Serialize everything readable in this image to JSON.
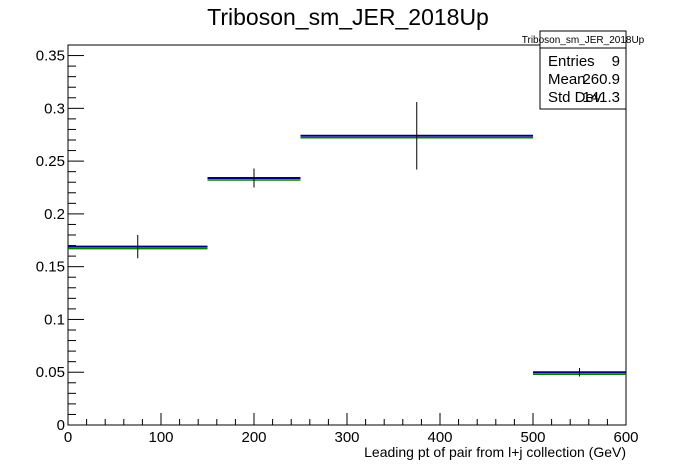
{
  "chart_data": {
    "type": "histogram",
    "title": "Triboson_sm_JER_2018Up",
    "xlabel": "Leading pt of pair from l+j collection (GeV)",
    "ylabel": "",
    "xlim": [
      0,
      600
    ],
    "ylim": [
      0,
      0.36
    ],
    "x_ticks": [
      0,
      100,
      200,
      300,
      400,
      500,
      600
    ],
    "y_ticks": [
      0,
      0.05,
      0.1,
      0.15,
      0.2,
      0.25,
      0.3,
      0.35
    ],
    "x_tick_labels": [
      "0",
      "100",
      "200",
      "300",
      "400",
      "500",
      "600"
    ],
    "y_tick_labels": [
      "0",
      "0.05",
      "0.1",
      "0.15",
      "0.2",
      "0.25",
      "0.3",
      "0.35"
    ],
    "bins": [
      {
        "x_low": 0,
        "x_high": 150,
        "x_center": 75,
        "value": 0.169,
        "error": 0.011
      },
      {
        "x_low": 150,
        "x_high": 250,
        "x_center": 200,
        "value": 0.234,
        "error": 0.009
      },
      {
        "x_low": 250,
        "x_high": 500,
        "x_center": 375,
        "value": 0.274,
        "error": 0.032
      },
      {
        "x_low": 500,
        "x_high": 600,
        "x_center": 550,
        "value": 0.05,
        "error": 0.004
      }
    ],
    "series_colors": {
      "main": "#00007f",
      "shadow": "#007f00",
      "error_bars": "#000000"
    },
    "grid": false,
    "stats_box": {
      "title": "Triboson_sm_JER_2018Up",
      "rows": [
        {
          "label": "Entries",
          "value": "9"
        },
        {
          "label": "Mean",
          "value": "260.9"
        },
        {
          "label": "Std Dev",
          "value": "141.3"
        }
      ]
    }
  }
}
